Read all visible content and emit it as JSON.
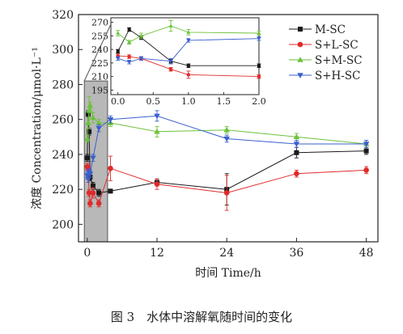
{
  "caption": "图 3　水体中溶解氧随时间的变化",
  "chart_data": {
    "type": "line",
    "xlabel": "时间 Time/h",
    "ylabel": "浓度 Concentration/μmol·L⁻¹",
    "xlim": [
      -1.5,
      50
    ],
    "ylim": [
      190,
      320
    ],
    "xticks": [
      0,
      12,
      24,
      36,
      48
    ],
    "yticks": [
      200,
      220,
      240,
      260,
      280,
      300,
      320
    ],
    "shaded_region": [
      -0.5,
      3.5
    ],
    "legend_position": "top-right",
    "series": [
      {
        "name": "M-SC",
        "color": "#1a1a1a",
        "marker": "square",
        "x": [
          0,
          0.16,
          0.33,
          0.5,
          1,
          2,
          4,
          12,
          24,
          36,
          48
        ],
        "y": [
          238,
          263,
          253,
          227,
          222,
          218,
          219,
          224,
          220,
          241,
          242
        ],
        "err": [
          2,
          2,
          2,
          2,
          2,
          2,
          1,
          2,
          9,
          3,
          2
        ]
      },
      {
        "name": "S+L-SC",
        "color": "#e02a2a",
        "marker": "circle",
        "x": [
          0,
          0.16,
          0.33,
          0.5,
          1,
          2,
          4,
          12,
          24,
          36,
          48
        ],
        "y": [
          233,
          232,
          218,
          212,
          218,
          212,
          232,
          223,
          218,
          229,
          231
        ],
        "err": [
          2,
          2,
          2,
          2,
          3,
          2,
          7,
          3,
          10,
          2,
          2
        ]
      },
      {
        "name": "S+M-SC",
        "color": "#6cc23a",
        "marker": "triangle-up",
        "x": [
          0,
          0.16,
          0.33,
          0.5,
          1,
          2,
          4,
          12,
          24,
          36,
          48
        ],
        "y": [
          249,
          258,
          265,
          268,
          261,
          258,
          258,
          253,
          254,
          250,
          246
        ],
        "err": [
          2,
          3,
          8,
          2,
          3,
          2,
          2,
          3,
          2,
          2,
          2
        ]
      },
      {
        "name": "S+H-SC",
        "color": "#3a5fcd",
        "marker": "triangle-down",
        "x": [
          0,
          0.16,
          0.33,
          0.5,
          1,
          2,
          4,
          12,
          24,
          36,
          48
        ],
        "y": [
          228,
          226,
          230,
          229,
          238,
          255,
          260,
          262,
          249,
          246,
          246
        ],
        "err": [
          2,
          2,
          2,
          2,
          2,
          2,
          2,
          3,
          2,
          2,
          2
        ]
      }
    ],
    "inset": {
      "xlim": [
        -0.1,
        2.0
      ],
      "ylim": [
        190,
        275
      ],
      "xticks": [
        0,
        0.5,
        1.0,
        1.5,
        2.0
      ],
      "xtick_labels": [
        "0.0",
        "0.5",
        "1.0",
        "1.5",
        "2.0"
      ],
      "yticks": [
        195,
        210,
        225,
        240,
        255,
        270
      ],
      "series": [
        {
          "name": "M-SC",
          "color": "#1a1a1a",
          "marker": "square",
          "x": [
            0,
            0.16,
            0.33,
            0.75,
            1,
            2
          ],
          "y": [
            238,
            262,
            253,
            227,
            222,
            222
          ],
          "err": [
            2,
            2,
            2,
            2,
            2,
            2
          ]
        },
        {
          "name": "S+L-SC",
          "color": "#e02a2a",
          "marker": "circle",
          "x": [
            0,
            0.16,
            0.33,
            0.75,
            1,
            2
          ],
          "y": [
            233,
            232,
            230,
            218,
            212,
            210
          ],
          "err": [
            2,
            2,
            2,
            2,
            4,
            2
          ]
        },
        {
          "name": "S+M-SC",
          "color": "#6cc23a",
          "marker": "triangle-up",
          "x": [
            0,
            0.16,
            0.33,
            0.75,
            1,
            2
          ],
          "y": [
            258,
            248,
            255,
            266,
            259,
            258
          ],
          "err": [
            3,
            2,
            3,
            6,
            3,
            2
          ]
        },
        {
          "name": "S+H-SC",
          "color": "#3a5fcd",
          "marker": "triangle-down",
          "x": [
            0,
            0.16,
            0.33,
            0.75,
            1,
            2
          ],
          "y": [
            230,
            226,
            230,
            227,
            250,
            252
          ],
          "err": [
            2,
            2,
            2,
            3,
            2,
            2
          ]
        }
      ]
    }
  }
}
